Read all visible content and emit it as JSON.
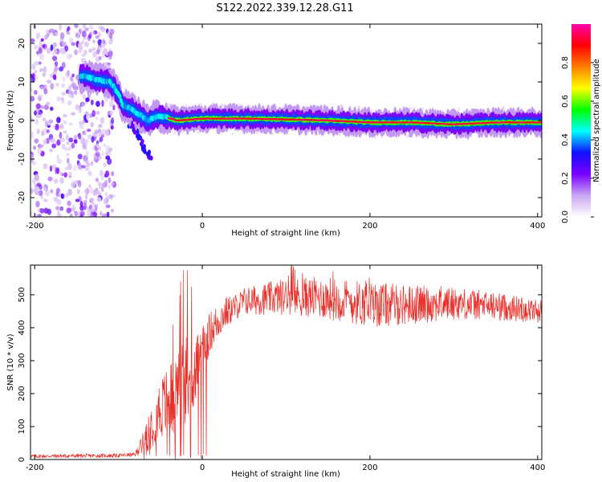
{
  "title": "S122.2022.339.12.28.G11",
  "colors": {
    "signal": "#e8302a",
    "track": "#e0352b",
    "frame": "#000000",
    "scatter": "#7b2be2"
  },
  "chart_data": [
    {
      "type": "heatmap",
      "xlabel": "Height of straight line (km)",
      "ylabel": "Frequency (Hz)",
      "xlim": [
        -205,
        405
      ],
      "ylim": [
        -25,
        25
      ],
      "xticks": [
        "-200",
        "0",
        "200",
        "400"
      ],
      "xtick_values": [
        -200,
        0,
        200,
        400
      ],
      "yticks": [
        "20",
        "10",
        "0",
        "-10",
        "-20"
      ],
      "ytick_values": [
        20,
        10,
        0,
        -10,
        -20
      ],
      "colorbar": {
        "label": "Normalized spectral amplitude",
        "ticks": [
          "0.0",
          "0.2",
          "0.4",
          "0.6",
          "0.8"
        ],
        "tick_values": [
          0.0,
          0.2,
          0.4,
          0.6,
          0.8
        ],
        "range": [
          0,
          1
        ],
        "colormap": [
          "#ffffff",
          "#c9a6f2",
          "#7b00ff",
          "#1010ff",
          "#00ffff",
          "#00ff00",
          "#ffff00",
          "#ff7f00",
          "#ff0000",
          "#ff00aa"
        ]
      },
      "noise_region": [
        -205,
        -105
      ],
      "track": [
        {
          "x": -140,
          "f": 11.5
        },
        {
          "x": -125,
          "f": 10.5
        },
        {
          "x": -110,
          "f": 10
        },
        {
          "x": -100,
          "f": 7
        },
        {
          "x": -95,
          "f": 4
        },
        {
          "x": -85,
          "f": 3
        },
        {
          "x": -75,
          "f": 1.5
        },
        {
          "x": -65,
          "f": 0
        },
        {
          "x": -55,
          "f": 1
        },
        {
          "x": -45,
          "f": 1
        },
        {
          "x": -30,
          "f": 0
        },
        {
          "x": 0,
          "f": 0.5
        },
        {
          "x": 50,
          "f": 0.5
        },
        {
          "x": 100,
          "f": 0.3
        },
        {
          "x": 150,
          "f": 0
        },
        {
          "x": 200,
          "f": -0.5
        },
        {
          "x": 250,
          "f": -0.5
        },
        {
          "x": 300,
          "f": -1
        },
        {
          "x": 350,
          "f": -0.5
        },
        {
          "x": 405,
          "f": -0.5
        }
      ],
      "secondary_branch": [
        {
          "x": -85,
          "f": -1
        },
        {
          "x": -75,
          "f": -4
        },
        {
          "x": -70,
          "f": -7
        },
        {
          "x": -65,
          "f": -9
        }
      ]
    },
    {
      "type": "line",
      "xlabel": "Height of straight line (km)",
      "ylabel": "SNR (10 * v/v)",
      "xlim": [
        -205,
        405
      ],
      "ylim": [
        0,
        590
      ],
      "xticks": [
        "-200",
        "0",
        "200",
        "400"
      ],
      "xtick_values": [
        -200,
        0,
        200,
        400
      ],
      "yticks": [
        "0",
        "100",
        "200",
        "300",
        "400",
        "500"
      ],
      "ytick_values": [
        0,
        100,
        200,
        300,
        400,
        500
      ],
      "envelope": [
        {
          "x": -205,
          "y": 10
        },
        {
          "x": -100,
          "y": 12
        },
        {
          "x": -80,
          "y": 15
        },
        {
          "x": -70,
          "y": 60
        },
        {
          "x": -55,
          "y": 140
        },
        {
          "x": -40,
          "y": 180
        },
        {
          "x": -25,
          "y": 230
        },
        {
          "x": -10,
          "y": 260
        },
        {
          "x": 0,
          "y": 330
        },
        {
          "x": 10,
          "y": 390
        },
        {
          "x": 25,
          "y": 440
        },
        {
          "x": 50,
          "y": 480
        },
        {
          "x": 100,
          "y": 495
        },
        {
          "x": 150,
          "y": 490
        },
        {
          "x": 200,
          "y": 470
        },
        {
          "x": 250,
          "y": 470
        },
        {
          "x": 300,
          "y": 475
        },
        {
          "x": 350,
          "y": 465
        },
        {
          "x": 405,
          "y": 450
        }
      ],
      "spread": [
        {
          "x": -205,
          "s": 6
        },
        {
          "x": -80,
          "s": 6
        },
        {
          "x": -60,
          "s": 80
        },
        {
          "x": -20,
          "s": 140
        },
        {
          "x": 0,
          "s": 70
        },
        {
          "x": 40,
          "s": 40
        },
        {
          "x": 120,
          "s": 60
        },
        {
          "x": 200,
          "s": 70
        },
        {
          "x": 300,
          "s": 50
        },
        {
          "x": 405,
          "s": 35
        }
      ]
    }
  ]
}
